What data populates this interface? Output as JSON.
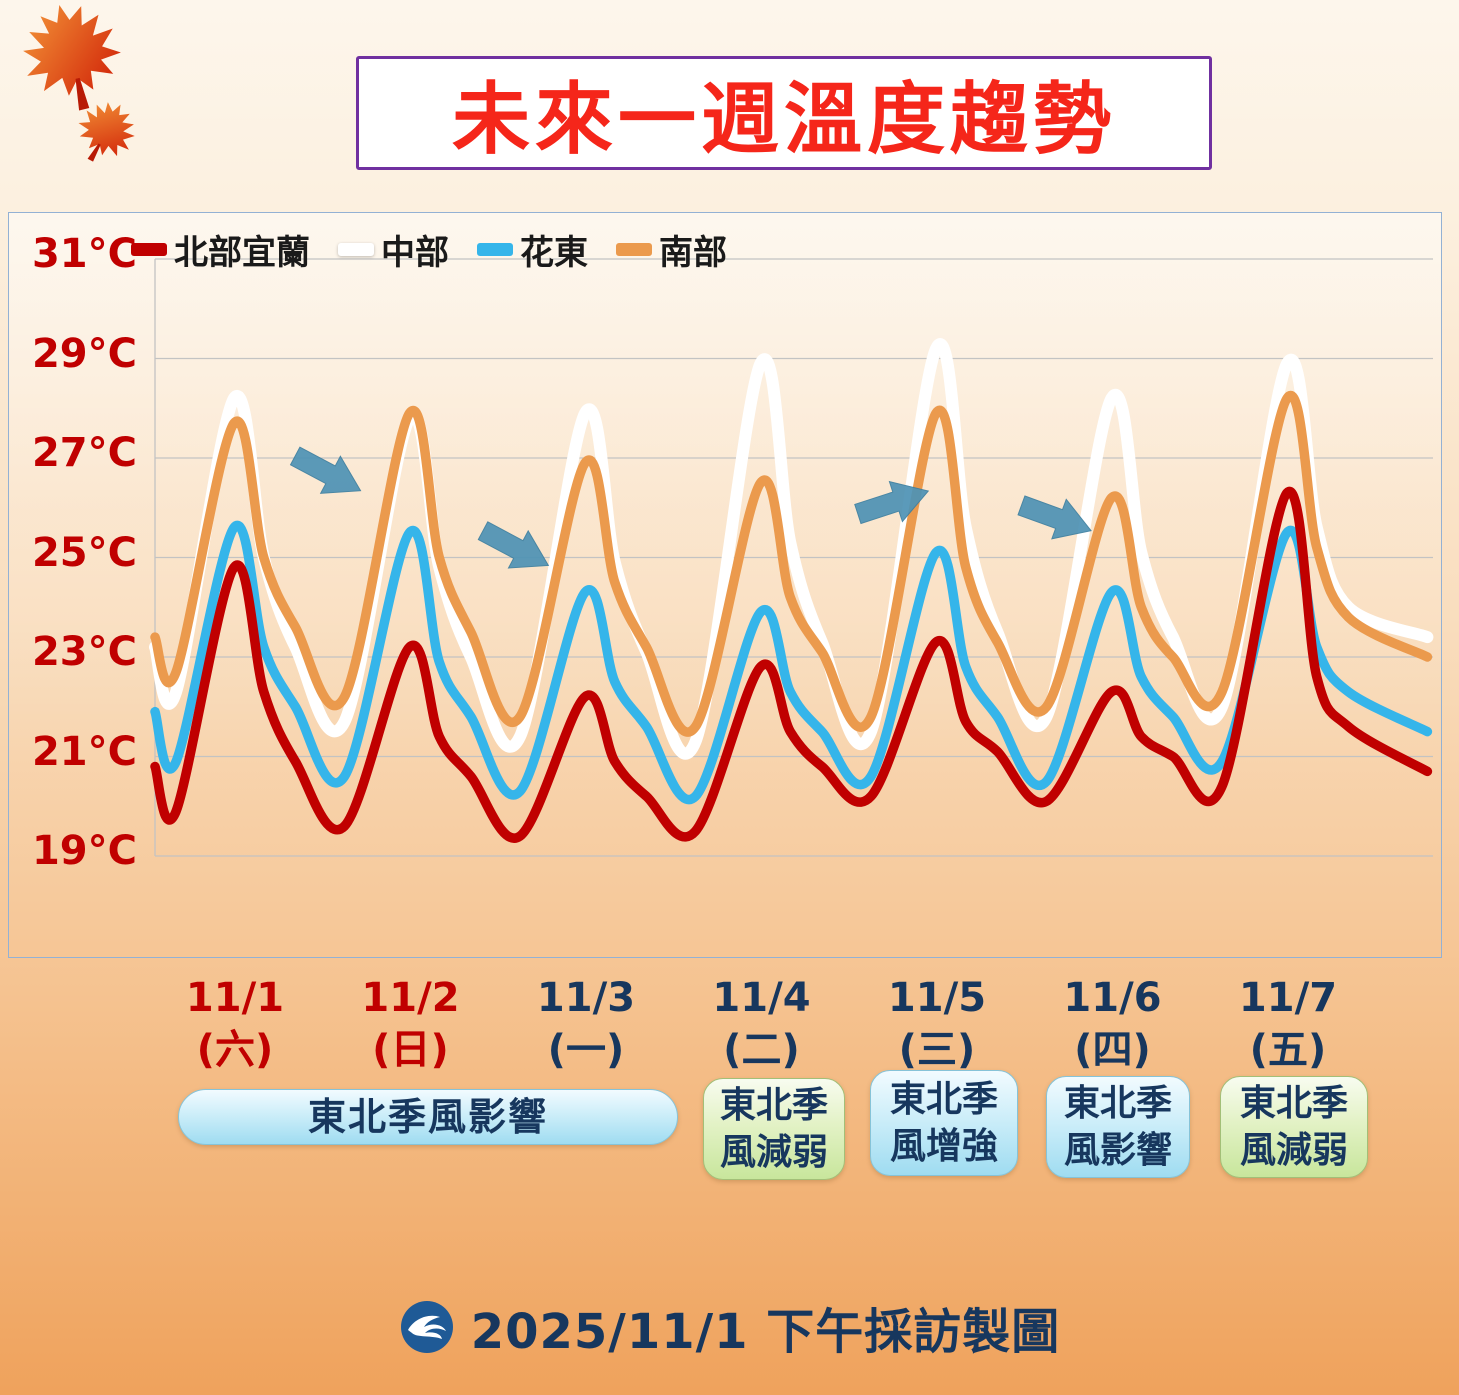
{
  "header": {
    "title": "未來一週溫度趨勢"
  },
  "footer": {
    "text": "2025/11/1 下午採訪製圖",
    "logo": "cwb-wave-logo"
  },
  "chart_data": {
    "type": "line",
    "title": "未來一週溫度趨勢",
    "xlabel": "",
    "ylabel": "",
    "ylim": [
      19,
      31
    ],
    "yticks": [
      31,
      29,
      27,
      25,
      23,
      21,
      19
    ],
    "ytick_labels": [
      "31°C",
      "29°C",
      "27°C",
      "25°C",
      "23°C",
      "21°C",
      "19°C"
    ],
    "grid": true,
    "legend_position": "top-left",
    "days": [
      {
        "date": "11/1",
        "weekday": "(六)",
        "weekend": true
      },
      {
        "date": "11/2",
        "weekday": "(日)",
        "weekend": true
      },
      {
        "date": "11/3",
        "weekday": "(一)",
        "weekend": false
      },
      {
        "date": "11/4",
        "weekday": "(二)",
        "weekend": false
      },
      {
        "date": "11/5",
        "weekday": "(三)",
        "weekend": false
      },
      {
        "date": "11/6",
        "weekday": "(四)",
        "weekend": false
      },
      {
        "date": "11/7",
        "weekday": "(五)",
        "weekend": false
      }
    ],
    "series": [
      {
        "key": "north-yilan",
        "name": "北部宜蘭",
        "color": "#c00000",
        "points": [
          [
            0,
            20.8
          ],
          [
            0.12,
            19.9
          ],
          [
            0.45,
            24.8
          ],
          [
            0.62,
            22.3
          ],
          [
            0.8,
            20.9
          ],
          [
            1.08,
            19.6
          ],
          [
            1.45,
            23.2
          ],
          [
            1.62,
            21.4
          ],
          [
            1.8,
            20.6
          ],
          [
            2.08,
            19.4
          ],
          [
            2.45,
            22.2
          ],
          [
            2.62,
            20.9
          ],
          [
            2.8,
            20.2
          ],
          [
            3.08,
            19.5
          ],
          [
            3.45,
            22.8
          ],
          [
            3.62,
            21.5
          ],
          [
            3.8,
            20.8
          ],
          [
            4.08,
            20.2
          ],
          [
            4.45,
            23.3
          ],
          [
            4.62,
            21.7
          ],
          [
            4.8,
            21.1
          ],
          [
            5.08,
            20.1
          ],
          [
            5.45,
            22.3
          ],
          [
            5.62,
            21.4
          ],
          [
            5.8,
            21.0
          ],
          [
            6.08,
            20.4
          ],
          [
            6.45,
            26.3
          ],
          [
            6.62,
            22.6
          ],
          [
            6.8,
            21.6
          ],
          [
            7.25,
            20.7
          ]
        ]
      },
      {
        "key": "central",
        "name": "中部",
        "color": "#ffffff",
        "points": [
          [
            0,
            23.2
          ],
          [
            0.12,
            22.3
          ],
          [
            0.45,
            28.2
          ],
          [
            0.62,
            25.0
          ],
          [
            0.8,
            23.2
          ],
          [
            1.08,
            21.7
          ],
          [
            1.45,
            27.8
          ],
          [
            1.62,
            24.8
          ],
          [
            1.8,
            23.0
          ],
          [
            2.08,
            21.4
          ],
          [
            2.45,
            27.9
          ],
          [
            2.62,
            24.9
          ],
          [
            2.8,
            23.1
          ],
          [
            3.08,
            21.3
          ],
          [
            3.45,
            28.9
          ],
          [
            3.62,
            25.3
          ],
          [
            3.8,
            23.3
          ],
          [
            4.08,
            21.5
          ],
          [
            4.45,
            29.2
          ],
          [
            4.62,
            25.6
          ],
          [
            4.8,
            23.5
          ],
          [
            5.08,
            21.8
          ],
          [
            5.45,
            28.2
          ],
          [
            5.62,
            25.1
          ],
          [
            5.8,
            23.4
          ],
          [
            6.08,
            22.0
          ],
          [
            6.45,
            28.9
          ],
          [
            6.62,
            25.6
          ],
          [
            6.8,
            24.0
          ],
          [
            7.25,
            23.4
          ]
        ]
      },
      {
        "key": "hualien-taitung",
        "name": "花東",
        "color": "#35b5ea",
        "points": [
          [
            0,
            21.9
          ],
          [
            0.12,
            20.9
          ],
          [
            0.45,
            25.6
          ],
          [
            0.62,
            23.2
          ],
          [
            0.8,
            22.0
          ],
          [
            1.08,
            20.6
          ],
          [
            1.45,
            25.5
          ],
          [
            1.62,
            22.9
          ],
          [
            1.8,
            21.8
          ],
          [
            2.08,
            20.3
          ],
          [
            2.45,
            24.3
          ],
          [
            2.62,
            22.5
          ],
          [
            2.8,
            21.6
          ],
          [
            3.08,
            20.2
          ],
          [
            3.45,
            23.9
          ],
          [
            3.62,
            22.3
          ],
          [
            3.8,
            21.5
          ],
          [
            4.08,
            20.6
          ],
          [
            4.45,
            25.1
          ],
          [
            4.62,
            22.8
          ],
          [
            4.8,
            21.8
          ],
          [
            5.08,
            20.5
          ],
          [
            5.45,
            24.3
          ],
          [
            5.62,
            22.6
          ],
          [
            5.8,
            21.8
          ],
          [
            6.08,
            20.9
          ],
          [
            6.45,
            25.5
          ],
          [
            6.62,
            23.2
          ],
          [
            6.8,
            22.3
          ],
          [
            7.25,
            21.5
          ]
        ]
      },
      {
        "key": "south",
        "name": "南部",
        "color": "#eb9a4d",
        "points": [
          [
            0,
            23.4
          ],
          [
            0.12,
            22.7
          ],
          [
            0.45,
            27.7
          ],
          [
            0.62,
            25.0
          ],
          [
            0.8,
            23.6
          ],
          [
            1.08,
            22.2
          ],
          [
            1.45,
            27.9
          ],
          [
            1.62,
            25.0
          ],
          [
            1.8,
            23.5
          ],
          [
            2.08,
            21.8
          ],
          [
            2.45,
            26.9
          ],
          [
            2.62,
            24.5
          ],
          [
            2.8,
            23.2
          ],
          [
            3.08,
            21.6
          ],
          [
            3.45,
            26.5
          ],
          [
            3.62,
            24.2
          ],
          [
            3.8,
            23.1
          ],
          [
            4.08,
            21.8
          ],
          [
            4.45,
            27.9
          ],
          [
            4.62,
            24.8
          ],
          [
            4.8,
            23.3
          ],
          [
            5.08,
            22.0
          ],
          [
            5.45,
            26.2
          ],
          [
            5.62,
            24.0
          ],
          [
            5.8,
            23.0
          ],
          [
            6.08,
            22.3
          ],
          [
            6.45,
            28.2
          ],
          [
            6.62,
            25.2
          ],
          [
            6.8,
            23.8
          ],
          [
            7.25,
            23.0
          ]
        ]
      }
    ],
    "trend_arrows": [
      {
        "day": 0.98,
        "temp": 26.7,
        "angle": 28
      },
      {
        "day": 2.05,
        "temp": 25.2,
        "angle": 28
      },
      {
        "day": 4.2,
        "temp": 26.1,
        "angle": -18
      },
      {
        "day": 5.13,
        "temp": 25.8,
        "angle": 20
      }
    ],
    "colors": {
      "weekend_label": "#c00000",
      "weekday_label": "#17375e",
      "grid": "#c3c3c3",
      "arrow": "#4f93b5"
    }
  },
  "badges": [
    {
      "lines": [
        "東北季風影響"
      ],
      "style": "blue"
    },
    {
      "lines": [
        "東北季",
        "風減弱"
      ],
      "style": "green"
    },
    {
      "lines": [
        "東北季",
        "風增強"
      ],
      "style": "blue"
    },
    {
      "lines": [
        "東北季",
        "風影響"
      ],
      "style": "blue"
    },
    {
      "lines": [
        "東北季",
        "風減弱"
      ],
      "style": "green"
    }
  ]
}
